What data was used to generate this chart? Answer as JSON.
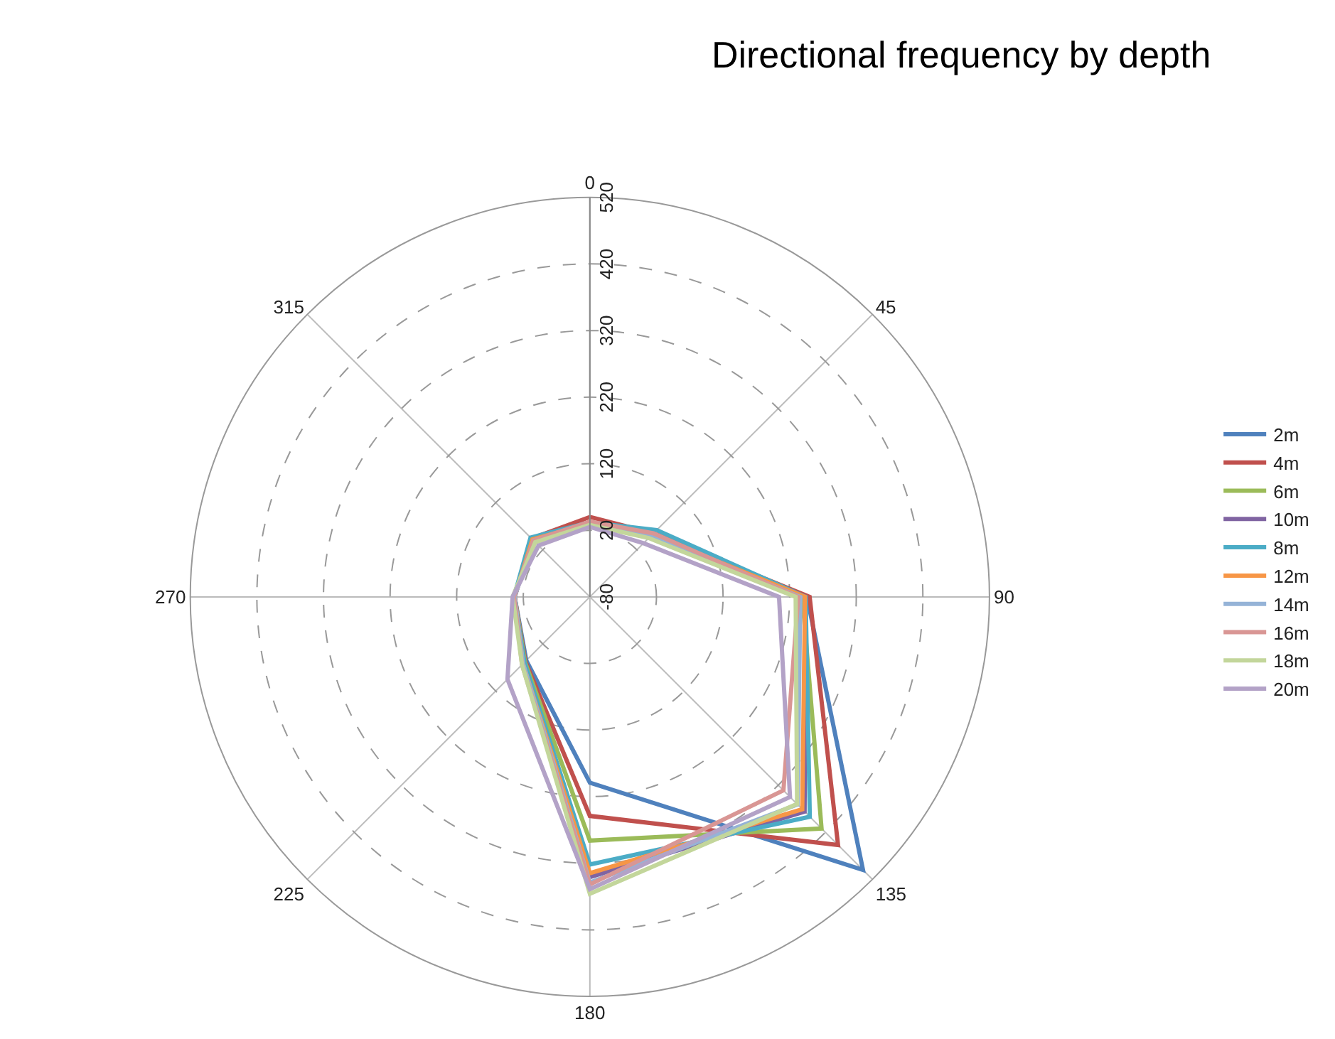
{
  "chart_data": {
    "type": "radar",
    "title": "Directional frequency by depth",
    "categories": [
      "0",
      "45",
      "90",
      "135",
      "180",
      "225",
      "270",
      "315"
    ],
    "ylim": [
      -80,
      520
    ],
    "yticks": [
      {
        "value": -80,
        "label": "-80"
      },
      20,
      120,
      220,
      320,
      420,
      520
    ],
    "grid": true,
    "legend": "right",
    "marker": "none",
    "line_style": "solid",
    "series": [
      {
        "name": "2m",
        "color": "#4f81bd",
        "values": [
          32,
          55,
          246,
          500,
          199,
          55,
          33,
          44
        ]
      },
      {
        "name": "4m",
        "color": "#c0504d",
        "values": [
          40,
          55,
          250,
          447,
          249,
          57,
          33,
          44
        ]
      },
      {
        "name": "6m",
        "color": "#9bbb59",
        "values": [
          30,
          52,
          239,
          412,
          286,
          58,
          33,
          42
        ]
      },
      {
        "name": "10m",
        "color": "#8064a2",
        "values": [
          30,
          50,
          244,
          376,
          341,
          60,
          33,
          42
        ]
      },
      {
        "name": "8m",
        "color": "#4bacc6",
        "values": [
          32,
          62,
          244,
          387,
          322,
          59,
          34,
          46
        ]
      },
      {
        "name": "12m",
        "color": "#f79646",
        "values": [
          30,
          52,
          243,
          371,
          335,
          62,
          33,
          42
        ]
      },
      {
        "name": "14m",
        "color": "#95b3d7",
        "values": [
          30,
          50,
          236,
          361,
          349,
          62,
          33,
          40
        ]
      },
      {
        "name": "16m",
        "color": "#d99694",
        "values": [
          33,
          55,
          233,
          331,
          352,
          64,
          34,
          40
        ]
      },
      {
        "name": "18m",
        "color": "#c3d69b",
        "values": [
          28,
          45,
          229,
          360,
          366,
          64,
          36,
          36
        ]
      },
      {
        "name": "20m",
        "color": "#b3a2c7",
        "values": [
          25,
          34,
          204,
          345,
          359,
          95,
          36,
          29
        ]
      }
    ]
  }
}
